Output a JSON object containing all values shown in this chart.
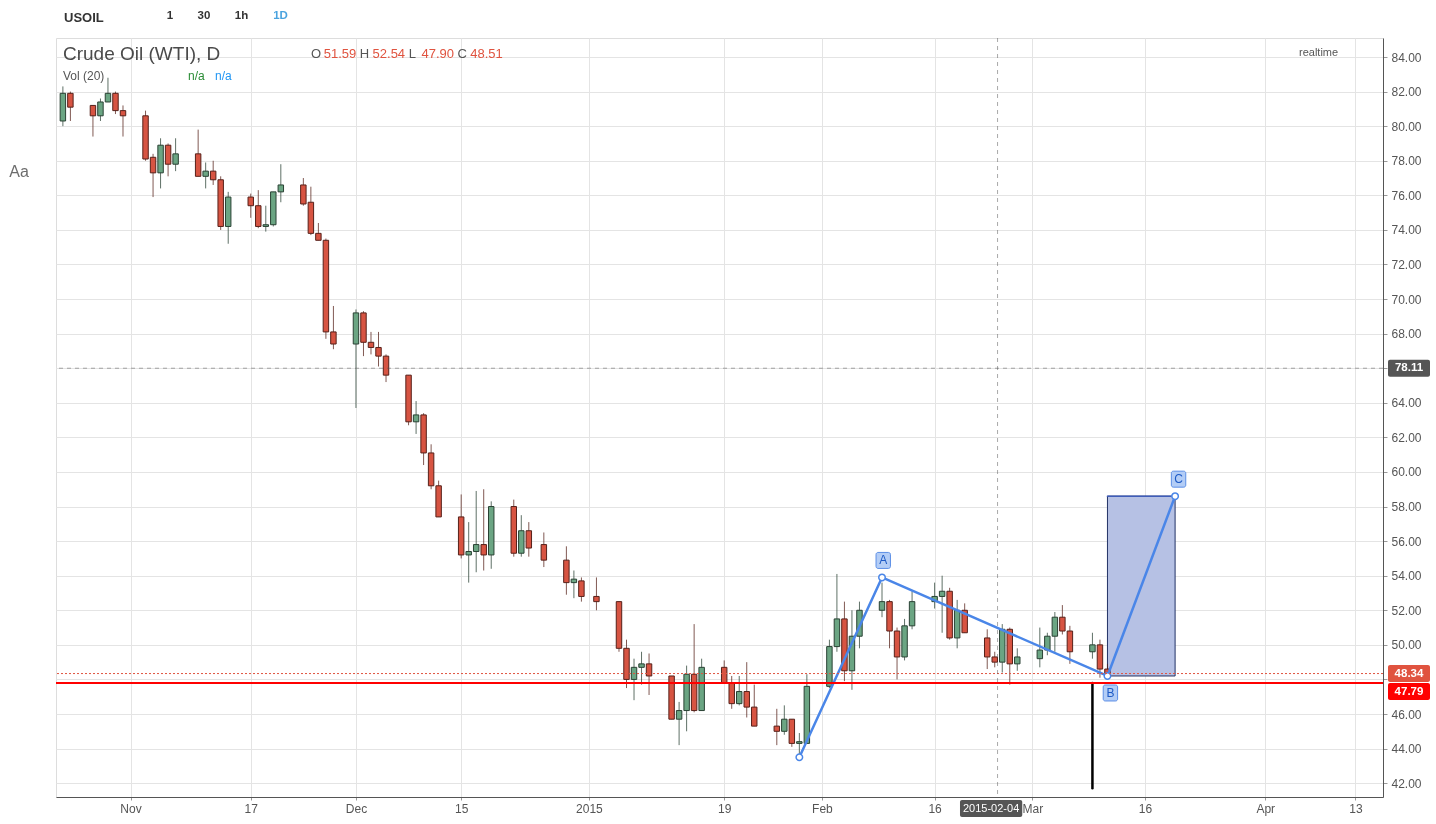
{
  "chart_data": {
    "type": "candlestick",
    "title": "Crude Oil (WTI), D",
    "annotations": [
      "O 51.59 H 52.54 L 47.90 C 48.51",
      "Vol (20)",
      "n/a",
      "n/a",
      "realtime",
      "USOIL",
      "1",
      "30",
      "1h",
      "1D",
      "Aa",
      "78.11",
      "2015-02-04",
      {
        "text": "A",
        "x": "2015-02-09",
        "y": 53.9
      },
      {
        "text": "B",
        "x": "2015-03-11",
        "y": 48.2
      },
      {
        "text": "C",
        "x": "2015-03-20",
        "y": 58.6
      }
    ],
    "x": [
      "2014-10-23",
      "2014-10-24",
      "2014-10-27",
      "2014-10-28",
      "2014-10-29",
      "2014-10-30",
      "2014-10-31",
      "2014-11-03",
      "2014-11-04",
      "2014-11-05",
      "2014-11-06",
      "2014-11-07",
      "2014-11-10",
      "2014-11-11",
      "2014-11-12",
      "2014-11-13",
      "2014-11-14",
      "2014-11-17",
      "2014-11-18",
      "2014-11-19",
      "2014-11-20",
      "2014-11-21",
      "2014-11-24",
      "2014-11-25",
      "2014-11-26",
      "2014-11-27",
      "2014-11-28",
      "2014-12-01",
      "2014-12-02",
      "2014-12-03",
      "2014-12-04",
      "2014-12-05",
      "2014-12-08",
      "2014-12-09",
      "2014-12-10",
      "2014-12-11",
      "2014-12-12",
      "2014-12-15",
      "2014-12-16",
      "2014-12-17",
      "2014-12-18",
      "2014-12-19",
      "2014-12-22",
      "2014-12-23",
      "2014-12-24",
      "2014-12-26",
      "2014-12-29",
      "2014-12-30",
      "2014-12-31",
      "2015-01-02",
      "2015-01-05",
      "2015-01-06",
      "2015-01-07",
      "2015-01-08",
      "2015-01-09",
      "2015-01-12",
      "2015-01-13",
      "2015-01-14",
      "2015-01-15",
      "2015-01-16",
      "2015-01-19",
      "2015-01-20",
      "2015-01-21",
      "2015-01-22",
      "2015-01-23",
      "2015-01-26",
      "2015-01-27",
      "2015-01-28",
      "2015-01-29",
      "2015-01-30",
      "2015-02-02",
      "2015-02-03",
      "2015-02-04",
      "2015-02-05",
      "2015-02-06",
      "2015-02-09",
      "2015-02-10",
      "2015-02-11",
      "2015-02-12",
      "2015-02-13",
      "2015-02-16",
      "2015-02-17",
      "2015-02-18",
      "2015-02-19",
      "2015-02-20",
      "2015-02-23",
      "2015-02-24",
      "2015-02-25",
      "2015-02-26",
      "2015-02-27",
      "2015-03-02",
      "2015-03-03",
      "2015-03-04",
      "2015-03-05",
      "2015-03-06",
      "2015-03-09",
      "2015-03-10",
      "2015-03-11"
    ],
    "ohlc": [
      [
        80.3,
        82.3,
        80.0,
        81.9
      ],
      [
        81.9,
        82.0,
        80.3,
        81.1
      ],
      [
        81.2,
        81.2,
        79.4,
        80.6
      ],
      [
        80.6,
        81.6,
        80.3,
        81.4
      ],
      [
        81.4,
        82.8,
        81.4,
        81.9
      ],
      [
        81.9,
        82.0,
        80.7,
        80.9
      ],
      [
        80.9,
        81.2,
        79.4,
        80.6
      ],
      [
        80.6,
        80.9,
        78.0,
        78.1
      ],
      [
        78.2,
        78.4,
        75.9,
        77.3
      ],
      [
        77.3,
        79.3,
        76.4,
        78.9
      ],
      [
        78.9,
        79.0,
        77.1,
        77.8
      ],
      [
        77.8,
        79.3,
        77.4,
        78.4
      ],
      [
        78.4,
        79.8,
        77.1,
        77.1
      ],
      [
        77.1,
        77.9,
        76.4,
        77.4
      ],
      [
        77.4,
        78.0,
        76.6,
        76.9
      ],
      [
        76.9,
        77.1,
        74.0,
        74.2
      ],
      [
        74.2,
        76.2,
        73.2,
        75.9
      ],
      [
        75.9,
        76.1,
        74.7,
        75.4
      ],
      [
        75.4,
        76.3,
        74.1,
        74.2
      ],
      [
        74.2,
        75.4,
        73.9,
        74.3
      ],
      [
        74.3,
        76.2,
        74.2,
        76.2
      ],
      [
        76.2,
        77.8,
        75.6,
        76.6
      ],
      [
        76.6,
        77.0,
        75.4,
        75.5
      ],
      [
        75.6,
        76.5,
        73.7,
        73.8
      ],
      [
        73.8,
        74.4,
        73.4,
        73.4
      ],
      [
        73.4,
        73.5,
        67.7,
        68.1
      ],
      [
        68.1,
        69.6,
        67.1,
        67.4
      ],
      [
        67.4,
        69.4,
        63.7,
        69.2
      ],
      [
        69.2,
        69.3,
        66.7,
        67.5
      ],
      [
        67.5,
        68.1,
        66.8,
        67.2
      ],
      [
        67.2,
        68.1,
        66.1,
        66.7
      ],
      [
        66.7,
        66.8,
        65.2,
        65.6
      ],
      [
        65.6,
        65.6,
        62.7,
        62.9
      ],
      [
        62.9,
        64.1,
        62.2,
        63.3
      ],
      [
        63.3,
        63.4,
        60.4,
        61.1
      ],
      [
        61.1,
        61.6,
        59.0,
        59.2
      ],
      [
        59.2,
        59.5,
        57.4,
        57.4
      ],
      [
        57.4,
        58.7,
        55.0,
        55.2
      ],
      [
        55.2,
        57.1,
        53.6,
        55.4
      ],
      [
        55.4,
        58.9,
        54.2,
        55.8
      ],
      [
        55.8,
        59.0,
        54.3,
        55.2
      ],
      [
        55.2,
        58.3,
        54.4,
        58.0
      ],
      [
        58.0,
        58.4,
        55.1,
        55.3
      ],
      [
        55.3,
        57.5,
        55.1,
        56.6
      ],
      [
        56.6,
        57.1,
        55.1,
        55.6
      ],
      [
        55.8,
        56.5,
        54.5,
        54.9
      ],
      [
        54.9,
        55.7,
        52.9,
        53.6
      ],
      [
        53.6,
        54.3,
        52.7,
        53.8
      ],
      [
        53.7,
        53.9,
        52.5,
        52.8
      ],
      [
        52.8,
        53.9,
        52.0,
        52.5
      ],
      [
        52.5,
        52.5,
        49.6,
        49.8
      ],
      [
        49.8,
        50.3,
        47.5,
        48.0
      ],
      [
        48.0,
        49.2,
        46.8,
        48.7
      ],
      [
        48.7,
        49.6,
        47.7,
        48.9
      ],
      [
        48.9,
        49.5,
        47.1,
        48.2
      ],
      [
        48.2,
        48.2,
        45.7,
        45.7
      ],
      [
        45.7,
        46.7,
        44.2,
        46.2
      ],
      [
        46.2,
        48.8,
        45.0,
        48.3
      ],
      [
        48.3,
        51.2,
        46.1,
        46.2
      ],
      [
        46.2,
        49.2,
        46.2,
        48.7
      ],
      [
        48.7,
        49.1,
        47.8,
        47.8
      ],
      [
        47.8,
        48.2,
        46.3,
        46.6
      ],
      [
        46.6,
        48.2,
        46.5,
        47.3
      ],
      [
        47.3,
        49.0,
        45.8,
        46.4
      ],
      [
        46.4,
        47.7,
        45.3,
        45.3
      ],
      [
        45.3,
        46.3,
        44.2,
        45.0
      ],
      [
        45.0,
        46.5,
        44.8,
        45.7
      ],
      [
        45.7,
        45.7,
        44.1,
        44.3
      ],
      [
        44.3,
        44.9,
        43.6,
        44.4
      ],
      [
        44.3,
        48.3,
        44.3,
        47.6
      ],
      [
        47.6,
        50.3,
        47.5,
        49.9
      ],
      [
        49.9,
        54.1,
        49.6,
        51.5
      ],
      [
        51.5,
        52.5,
        47.9,
        48.5
      ],
      [
        48.5,
        52.0,
        47.4,
        50.5
      ],
      [
        50.5,
        52.5,
        49.8,
        52.0
      ],
      [
        52.0,
        53.6,
        51.6,
        52.5
      ],
      [
        52.5,
        52.6,
        49.8,
        50.8
      ],
      [
        50.8,
        51.0,
        48.0,
        49.3
      ],
      [
        49.3,
        51.5,
        49.1,
        51.1
      ],
      [
        51.1,
        53.1,
        50.9,
        52.5
      ],
      [
        52.5,
        53.6,
        52.1,
        52.8
      ],
      [
        52.8,
        54.0,
        50.7,
        53.1
      ],
      [
        53.1,
        53.3,
        50.3,
        50.4
      ],
      [
        50.4,
        52.6,
        49.8,
        52.0
      ],
      [
        52.0,
        52.4,
        50.7,
        50.7
      ],
      [
        50.4,
        50.9,
        48.6,
        49.3
      ],
      [
        49.3,
        49.6,
        48.7,
        49.0
      ],
      [
        49.0,
        51.2,
        48.4,
        50.9
      ],
      [
        50.9,
        51.0,
        47.7,
        48.9
      ],
      [
        48.9,
        49.8,
        48.5,
        49.3
      ],
      [
        49.2,
        51.0,
        48.7,
        49.7
      ],
      [
        49.7,
        50.7,
        49.4,
        50.5
      ],
      [
        50.5,
        51.9,
        49.6,
        51.6
      ],
      [
        51.6,
        52.3,
        50.6,
        50.8
      ],
      [
        50.8,
        51.1,
        48.9,
        49.6
      ],
      [
        49.6,
        50.7,
        49.2,
        50.0
      ],
      [
        50.0,
        50.3,
        48.1,
        48.6
      ],
      [
        48.6,
        48.9,
        48.2,
        48.3
      ]
    ],
    "colors": [
      "#6ba583",
      "#d75442",
      "#d75442",
      "#6ba583",
      "#6ba583",
      "#d75442",
      "#d75442",
      "#d75442",
      "#d75442",
      "#6ba583",
      "#d75442",
      "#6ba583",
      "#d75442",
      "#6ba583",
      "#d75442",
      "#d75442",
      "#6ba583",
      "#d75442",
      "#d75442",
      "#6ba583",
      "#6ba583",
      "#6ba583",
      "#d75442",
      "#d75442",
      "#d75442",
      "#d75442",
      "#d75442",
      "#6ba583",
      "#d75442",
      "#d75442",
      "#d75442",
      "#d75442",
      "#d75442",
      "#6ba583",
      "#d75442",
      "#d75442",
      "#d75442",
      "#d75442",
      "#6ba583",
      "#6ba583",
      "#d75442",
      "#6ba583",
      "#d75442",
      "#6ba583",
      "#d75442",
      "#d75442",
      "#d75442",
      "#6ba583",
      "#d75442",
      "#d75442",
      "#d75442",
      "#d75442",
      "#6ba583",
      "#6ba583",
      "#d75442",
      "#d75442",
      "#6ba583",
      "#6ba583",
      "#d75442",
      "#6ba583",
      "#d75442",
      "#d75442",
      "#6ba583",
      "#d75442",
      "#d75442",
      "#d75442",
      "#6ba583",
      "#d75442",
      "#6ba583",
      "#6ba583",
      "#6ba583",
      "#6ba583",
      "#d75442",
      "#6ba583",
      "#6ba583",
      "#6ba583",
      "#d75442",
      "#d75442",
      "#6ba583",
      "#6ba583",
      "#6ba583",
      "#6ba583",
      "#d75442",
      "#6ba583",
      "#d75442",
      "#d75442",
      "#d75442",
      "#6ba583",
      "#d75442",
      "#6ba583",
      "#6ba583",
      "#6ba583",
      "#6ba583",
      "#d75442",
      "#d75442",
      "#6ba583",
      "#d75442",
      "#d75442"
    ],
    "series": [
      {
        "type": "line",
        "x": [
          "2015-03-11",
          "2015-03-20"
        ],
        "values": [
          58.6,
          58.6
        ],
        "lower": [
          48.2,
          48.2
        ],
        "upper": [
          58.6,
          58.6
        ],
        "color": "#3f5cb8"
      },
      {
        "type": "line",
        "x": [
          "2015-01-29",
          "2015-02-09",
          "2015-03-11",
          "2015-03-20"
        ],
        "values": [
          43.5,
          53.9,
          48.2,
          58.6
        ],
        "color": "#4a86e8",
        "marker": "circle"
      },
      {
        "type": "line",
        "x": [
          "2015-03-09",
          "2015-03-09"
        ],
        "values": [
          47.8,
          41.7
        ],
        "color": "#000000"
      }
    ],
    "ref_lines": [
      {
        "axis": "y",
        "value": 48.34,
        "label": "48.34",
        "color": "#e0533f",
        "line_style": "dotted"
      },
      {
        "axis": "y",
        "value": 47.79,
        "label": "47.79",
        "color": "#ff0000",
        "line_style": "solid"
      },
      {
        "axis": "y",
        "value": 66.0,
        "color": "#555555",
        "line_style": "dashed"
      },
      {
        "axis": "x",
        "value": "2015-02-24T09:00",
        "color": "#555555",
        "line_style": "dashed"
      }
    ],
    "xlim": [
      "2014-10-22T18:00",
      "2015-04-16"
    ],
    "ylim": [
      41.2,
      85.1
    ],
    "xticks": [
      {
        "value": "2014-11-01",
        "label": "Nov"
      },
      {
        "value": "2014-11-17",
        "label": "17"
      },
      {
        "value": "2014-12-01",
        "label": "Dec"
      },
      {
        "value": "2014-12-15",
        "label": "15"
      },
      {
        "value": "2015-01-01",
        "label": "2015"
      },
      {
        "value": "2015-01-19",
        "label": "19"
      },
      {
        "value": "2015-02-01",
        "label": "Feb"
      },
      {
        "value": "2015-02-16",
        "label": "16"
      },
      {
        "value": "2015-03-01",
        "label": "Mar"
      },
      {
        "value": "2015-03-16",
        "label": "16"
      },
      {
        "value": "2015-04-01",
        "label": "Apr"
      },
      {
        "value": "2015-04-13",
        "label": "13"
      }
    ],
    "yticks": [
      {
        "value": 42,
        "label": "42.00"
      },
      {
        "value": 44,
        "label": "44.00"
      },
      {
        "value": 46,
        "label": "46.00"
      },
      {
        "value": 48,
        "label": null
      },
      {
        "value": 50,
        "label": "50.00"
      },
      {
        "value": 52,
        "label": "52.00"
      },
      {
        "value": 54,
        "label": "54.00"
      },
      {
        "value": 56,
        "label": "56.00"
      },
      {
        "value": 58,
        "label": "58.00"
      },
      {
        "value": 60,
        "label": "60.00"
      },
      {
        "value": 62,
        "label": "62.00"
      },
      {
        "value": 64,
        "label": "64.00"
      },
      {
        "value": 66,
        "label": null
      },
      {
        "value": 68,
        "label": "68.00"
      },
      {
        "value": 70,
        "label": "70.00"
      },
      {
        "value": 72,
        "label": "72.00"
      },
      {
        "value": 74,
        "label": "74.00"
      },
      {
        "value": 76,
        "label": "76.00"
      },
      {
        "value": 78,
        "label": "78.00"
      },
      {
        "value": 80,
        "label": "80.00"
      },
      {
        "value": 82,
        "label": "82.00"
      },
      {
        "value": 84,
        "label": "84.00"
      }
    ],
    "grid": true
  }
}
